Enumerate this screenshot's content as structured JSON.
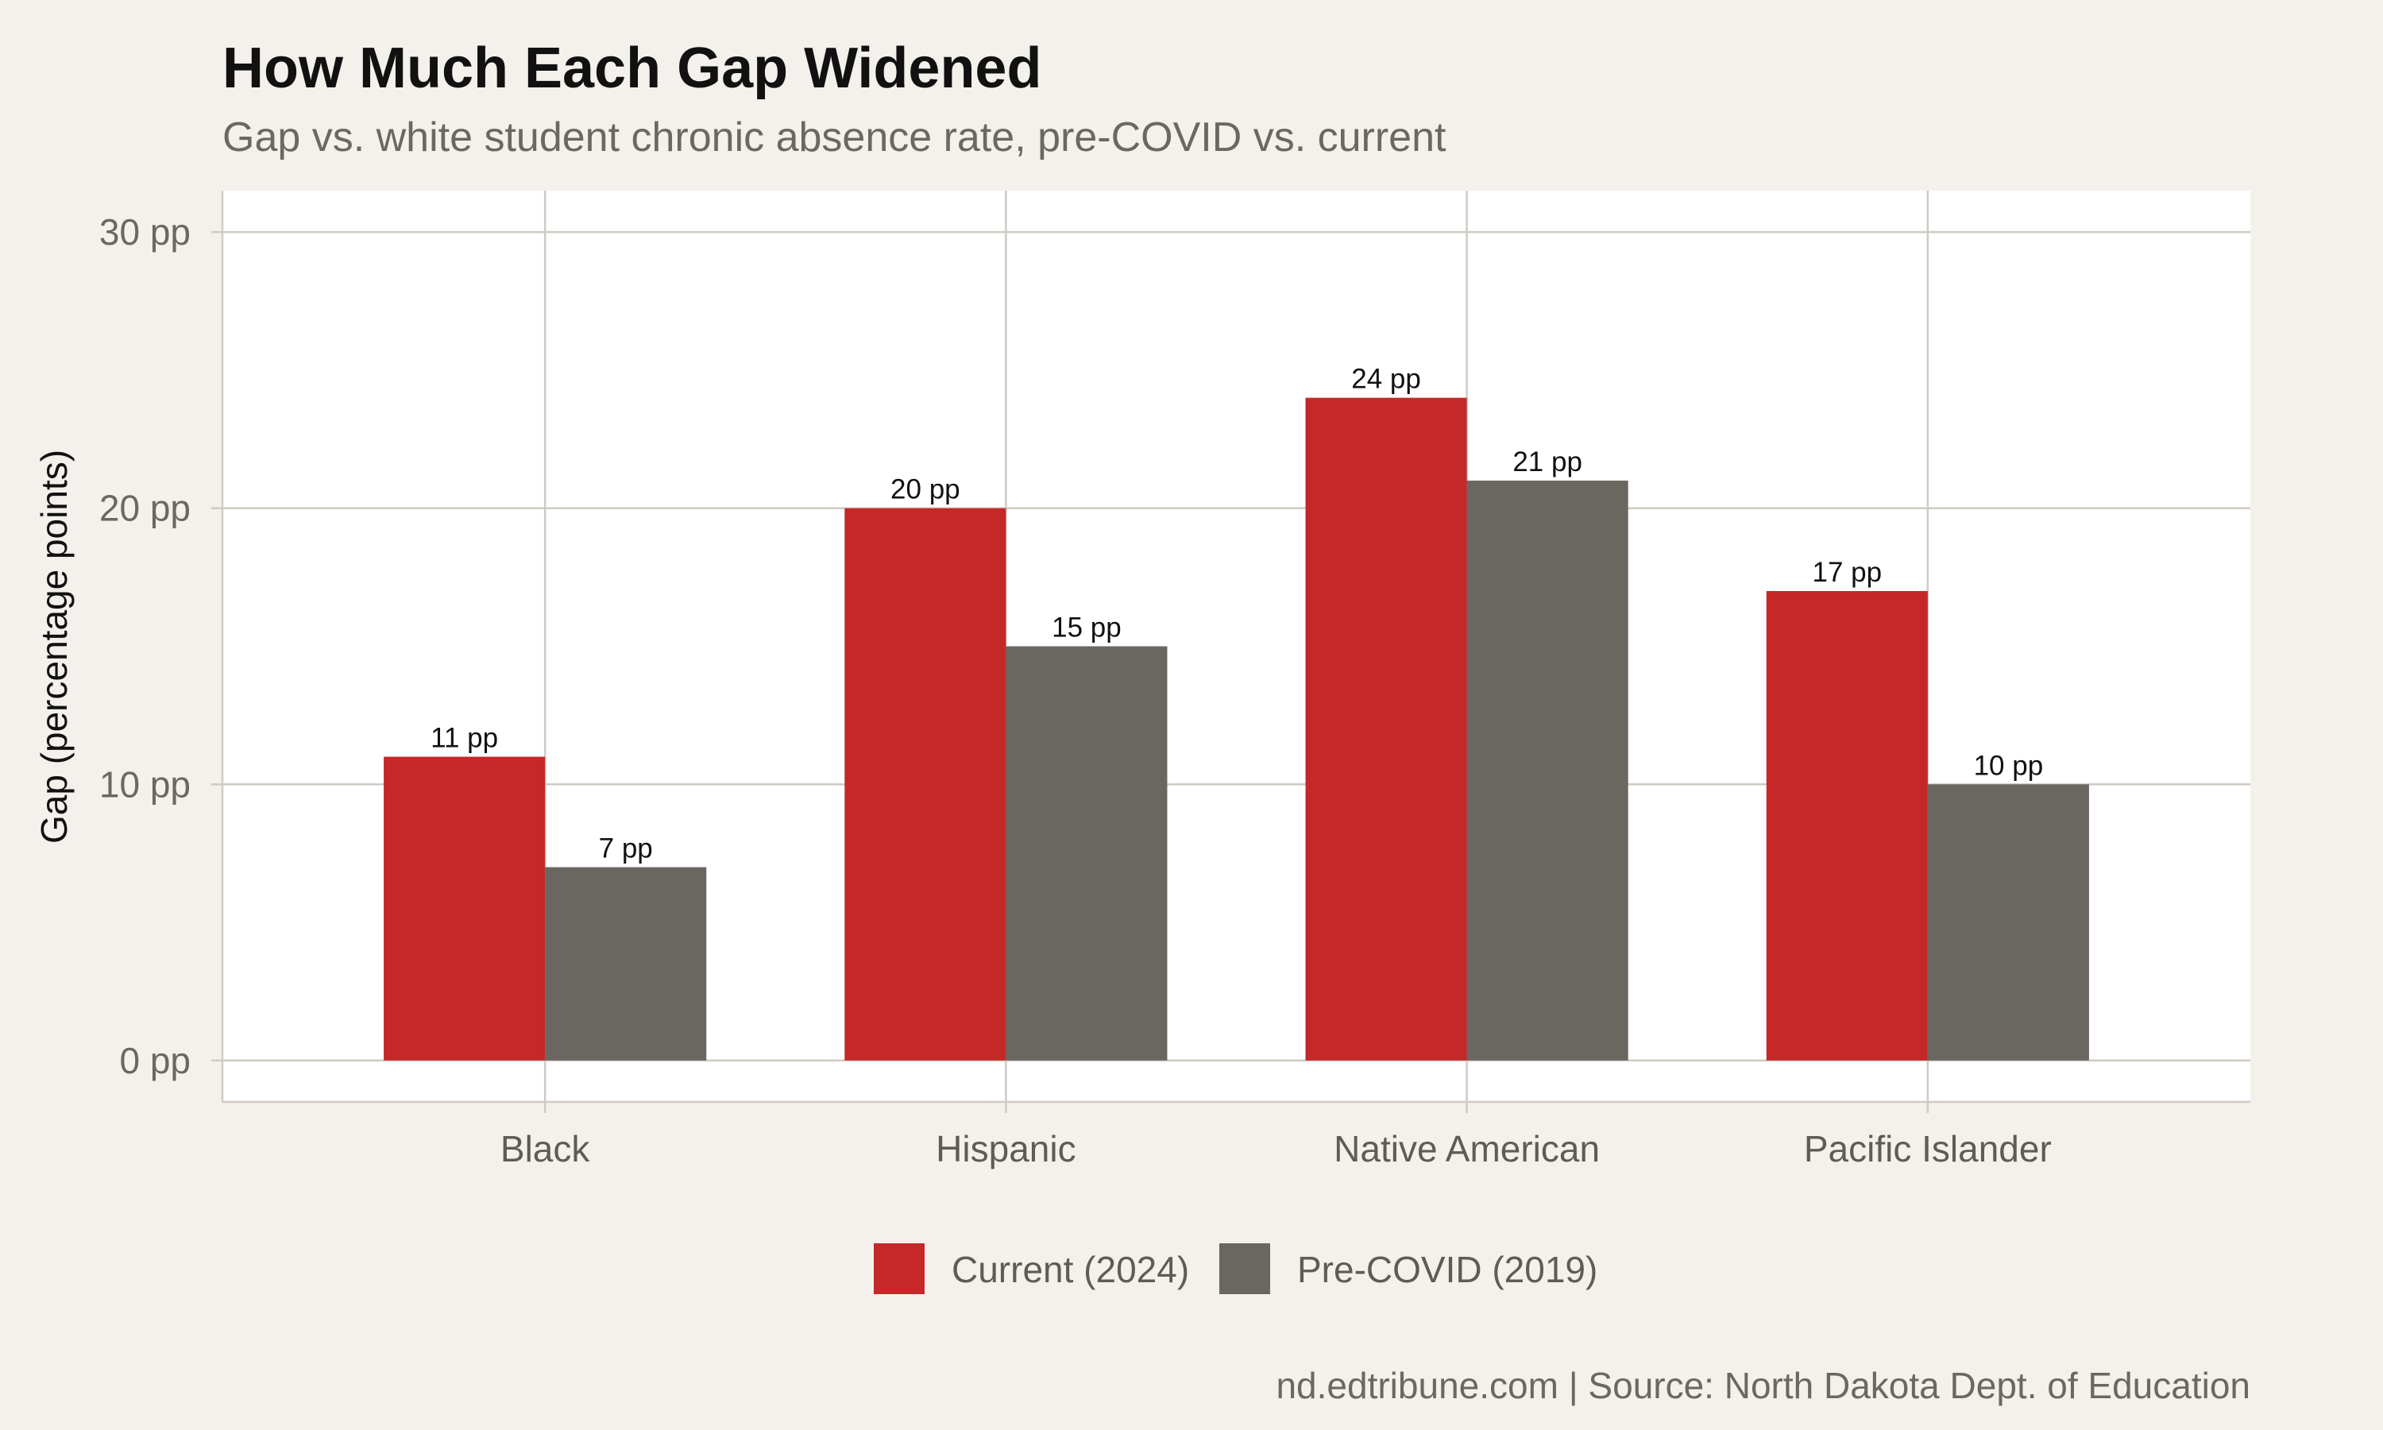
{
  "chart_data": {
    "type": "bar",
    "title": "How Much Each Gap Widened",
    "subtitle": "Gap vs. white student chronic absence rate, pre-COVID vs. current",
    "xlabel": "",
    "ylabel": "Gap (percentage points)",
    "ylim": [
      -1.5,
      31.5
    ],
    "yticks": [
      0,
      10,
      20,
      30
    ],
    "ytick_labels": [
      "0 pp",
      "10 pp",
      "20 pp",
      "30 pp"
    ],
    "categories": [
      "Black",
      "Hispanic",
      "Native American",
      "Pacific Islander"
    ],
    "series": [
      {
        "name": "Current (2024)",
        "values": [
          11,
          20,
          24,
          17
        ],
        "color": "#c42828",
        "labels": [
          "11 pp",
          "20 pp",
          "24 pp",
          "17 pp"
        ]
      },
      {
        "name": "Pre-COVID (2019)",
        "values": [
          7,
          15,
          21,
          10
        ],
        "color": "#6a6660",
        "labels": [
          "7 pp",
          "15 pp",
          "21 pp",
          "10 pp"
        ]
      }
    ],
    "grid": true,
    "legend_position": "bottom",
    "caption": "nd.edtribune.com | Source: North Dakota Dept. of Education",
    "colors": {
      "background": "#f4f1ec",
      "panel": "#ffffff",
      "grid": "#cfcbc3"
    }
  }
}
